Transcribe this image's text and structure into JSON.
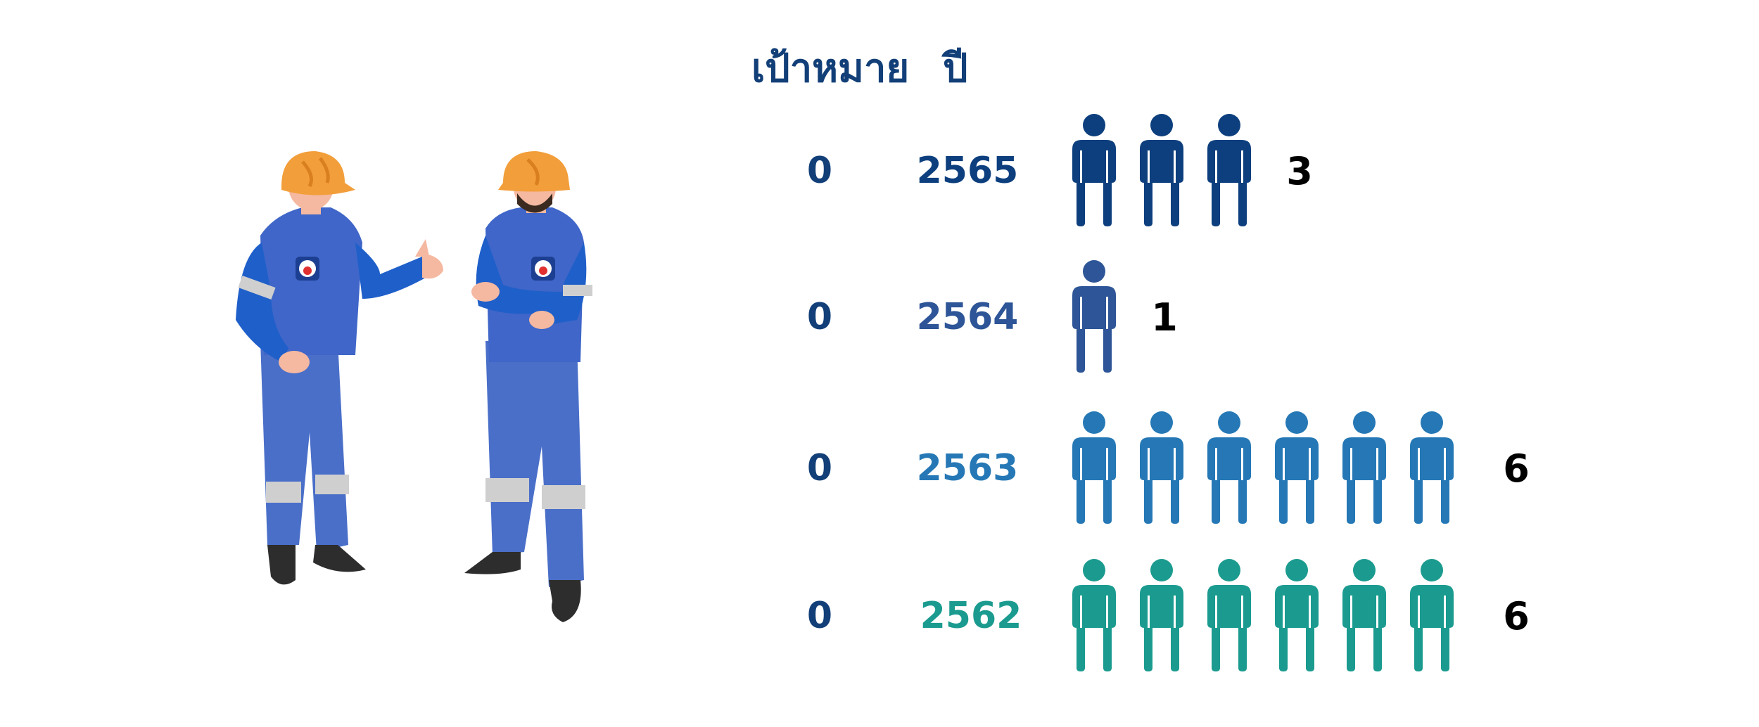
{
  "headers": {
    "target": "เป้าหมาย",
    "year": "ปี"
  },
  "illustration": {
    "description_icon": "two-workers-icon"
  },
  "chart_data": {
    "type": "pictograph",
    "columns": [
      "เป้าหมาย",
      "ปี"
    ],
    "rows": [
      {
        "year": "2565",
        "target": "0",
        "count": 3,
        "color": "#0d3f7e"
      },
      {
        "year": "2564",
        "target": "0",
        "count": 1,
        "color": "#2d5597"
      },
      {
        "year": "2563",
        "target": "0",
        "count": 6,
        "color": "#2578b5"
      },
      {
        "year": "2562",
        "target": "0",
        "count": 6,
        "color": "#1b9b8f"
      }
    ],
    "target_color": "#123f78",
    "count_color": "#000000",
    "title": "",
    "xlabel": "",
    "ylabel": ""
  }
}
